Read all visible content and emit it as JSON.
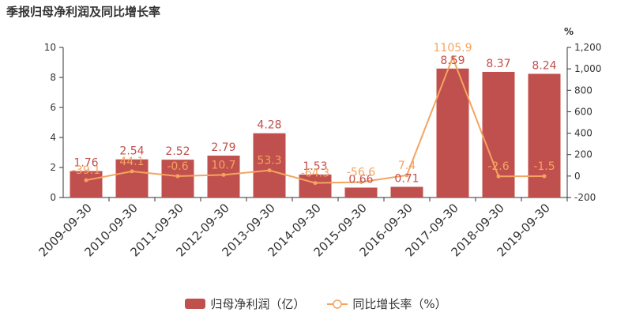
{
  "title": "季报归母净利润及同比增长率",
  "chart_data": {
    "type": "bar",
    "categories": [
      "2009-09-30",
      "2010-09-30",
      "2011-09-30",
      "2012-09-30",
      "2013-09-30",
      "2014-09-30",
      "2015-09-30",
      "2016-09-30",
      "2017-09-30",
      "2018-09-30",
      "2019-09-30"
    ],
    "series": [
      {
        "name": "归母净利润（亿）",
        "type": "bar",
        "axis": "left",
        "values": [
          1.76,
          2.54,
          2.52,
          2.79,
          4.28,
          1.53,
          0.66,
          0.71,
          8.59,
          8.37,
          8.24
        ],
        "labels": [
          "1.76",
          "2.54",
          "2.52",
          "2.79",
          "4.28",
          "1.53",
          "0.66",
          "0.71",
          "8.59",
          "8.37",
          "8.24"
        ]
      },
      {
        "name": "同比增长率（%）",
        "type": "line",
        "axis": "right",
        "values": [
          -39.1,
          44.1,
          -0.6,
          10.7,
          53.3,
          -64.3,
          -56.6,
          7.4,
          1105.9,
          -2.6,
          -1.5
        ],
        "labels": [
          "-39.1",
          "44.1",
          "-0.6",
          "10.7",
          "53.3",
          "-64.3",
          "-56.6",
          "7.4",
          "1105.9",
          "-2.6",
          "-1.5"
        ]
      }
    ],
    "y_left": {
      "min": 0,
      "max": 10,
      "ticks": [
        "0",
        "2",
        "4",
        "6",
        "8",
        "10"
      ]
    },
    "y_right": {
      "min": -200,
      "max": 1200,
      "unit": "%",
      "ticks": [
        "-200",
        "0",
        "200",
        "400",
        "600",
        "800",
        "1,000",
        "1,200"
      ]
    },
    "grid": false,
    "legend_position": "bottom"
  },
  "legend": {
    "bar_label": "归母净利润（亿）",
    "line_label": "同比增长率（%）"
  },
  "colors": {
    "bar": "#c0504d",
    "line": "#f4a460",
    "bar_label": "#c0504d",
    "line_label": "#f4a460",
    "axis": "#333333"
  }
}
